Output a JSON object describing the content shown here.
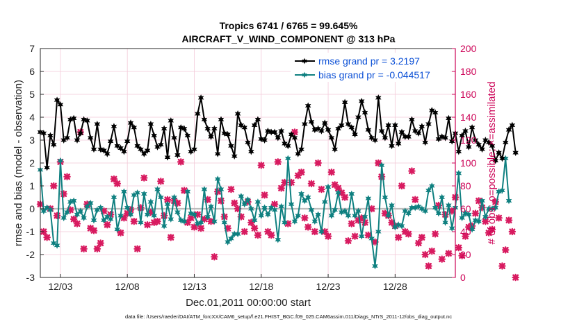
{
  "title_line1": "Tropics 6741 / 6765 = 99.645%",
  "title_line2": "AIRCRAFT_V_WIND_COMPONENT @ 313 hPa",
  "xlabel": "Dec.01,2011 00:00:00 start",
  "ylabel_left": "rmse and bias (model - observation)",
  "ylabel_right": "# of obs: o=possible; ×=assimilated",
  "footer": "data file: /Users/raeder/DAI/ATM_forcXX/CAM6_setup/f.e21.FHIST_BGC.f09_025.CAM6assim.011/Diags_NTrS_2011-12/obs_diag_output.nc",
  "colors": {
    "rmse": "#000000",
    "bias": "#0f8080",
    "obs": "#d81b60",
    "right_axis": "#cc0055",
    "legend_text": "#0a4fd6"
  },
  "chart_data": {
    "type": "line",
    "xlim": [
      1.5,
      32.5
    ],
    "xticks": [
      3,
      8,
      13,
      18,
      23,
      28
    ],
    "xtick_labels": [
      "12/03",
      "12/08",
      "12/13",
      "12/18",
      "12/23",
      "12/28"
    ],
    "ylim_left": [
      -3,
      7
    ],
    "yticks_left": [
      -3,
      -2,
      -1,
      0,
      1,
      2,
      3,
      4,
      5,
      6,
      7
    ],
    "ylim_right": [
      0,
      200
    ],
    "yticks_right": [
      0,
      20,
      40,
      60,
      80,
      100,
      120,
      140,
      160,
      180,
      200
    ],
    "legend": [
      "rmse grand pr = 3.2197",
      "bias grand pr = -0.044517"
    ],
    "series": [
      {
        "name": "rmse",
        "marker": "star",
        "axis": "left",
        "values": [
          3.35,
          3.3,
          1.8,
          3.2,
          2.8,
          4.75,
          4.55,
          3.0,
          3.1,
          3.9,
          3.95,
          3.0,
          3.3,
          3.9,
          3.85,
          3.1,
          2.6,
          3.7,
          2.6,
          2.55,
          2.4,
          2.95,
          3.6,
          2.75,
          2.65,
          2.5,
          2.95,
          3.75,
          3.55,
          2.75,
          2.6,
          2.4,
          2.55,
          3.7,
          3.2,
          2.7,
          2.8,
          3.5,
          2.25,
          3.85,
          3.1,
          2.35,
          3.55,
          3.5,
          3.2,
          2.5,
          2.6,
          4.15,
          4.85,
          3.9,
          3.5,
          3.15,
          3.5,
          2.4,
          3.9,
          3.3,
          3.25,
          2.75,
          2.3,
          4.15,
          3.65,
          3.55,
          2.9,
          2.5,
          3.65,
          3.9,
          3.05,
          3.0,
          3.4,
          3.35,
          3.35,
          3.1,
          3.4,
          2.85,
          2.75,
          3.25,
          3.1,
          2.4,
          2.6,
          3.7,
          4.5,
          3.8,
          3.45,
          3.5,
          3.4,
          3.75,
          3.45,
          3.1,
          2.6,
          3.5,
          3.65,
          4.65,
          3.7,
          3.55,
          3.25,
          4.0,
          4.7,
          4.2,
          3.45,
          3.1,
          3.0,
          4.85,
          3.4,
          3.1,
          3.65,
          2.75,
          3.65,
          2.85,
          3.35,
          3.15,
          3.15,
          3.9,
          3.4,
          3.3,
          3.6,
          2.9,
          3.7,
          4.3,
          4.2,
          3.05,
          3.15,
          3.1,
          3.95,
          2.95,
          3.3,
          2.5,
          3.2,
          3.4,
          2.7,
          3.55,
          3.0,
          2.8,
          2.6,
          3.0,
          2.9,
          2.75,
          2.1,
          2.45,
          2.2,
          2.9,
          3.45,
          3.65,
          2.45
        ]
      },
      {
        "name": "bias",
        "marker": "star",
        "axis": "left",
        "values": [
          1.7,
          -0.1,
          0.05,
          -0.05,
          -1.5,
          -1.6,
          2.1,
          -0.4,
          -0.15,
          0.3,
          0.35,
          -0.25,
          -0.1,
          -0.4,
          0.1,
          0.25,
          -0.5,
          -0.05,
          0.05,
          -0.5,
          -0.35,
          -0.45,
          0.5,
          -0.9,
          -0.3,
          0.75,
          0.05,
          -0.25,
          0.6,
          0.7,
          -0.6,
          0.65,
          -0.25,
          0.3,
          -0.3,
          0.85,
          0.5,
          -0.75,
          0.2,
          -0.45,
          0.5,
          -0.15,
          -0.5,
          -0.55,
          0.75,
          -0.2,
          -0.25,
          -0.65,
          -0.6,
          0.85,
          -0.35,
          0.1,
          -0.55,
          1.3,
          0.85,
          -0.6,
          -1.45,
          -1.3,
          -1.1,
          -1.1,
          0.55,
          0.2,
          0.4,
          0.0,
          -0.5,
          0.3,
          -0.3,
          0.05,
          -0.25,
          0.05,
          -0.05,
          -1.35,
          0.1,
          -0.6,
          2.2,
          0.2,
          -0.55,
          -0.3,
          0.65,
          0.35,
          0.5,
          -0.05,
          -0.55,
          -0.25,
          -1.0,
          0.3,
          0.95,
          -0.3,
          -0.05,
          0.7,
          -0.15,
          -0.1,
          -0.3,
          0.65,
          -0.3,
          -0.1,
          -1.2,
          -0.35,
          0.45,
          -1.3,
          -2.5,
          -1.0,
          1.9,
          0.5,
          -0.3,
          0.15,
          -0.8,
          -0.7,
          -0.75,
          -0.1,
          -0.2,
          0.05,
          0.05,
          0.1,
          0.0,
          -0.1,
          0.8,
          1.0,
          0.05,
          -0.2,
          0.5,
          -0.6,
          0.15,
          -0.85,
          0.05,
          1.55,
          -0.4,
          -0.2,
          -0.25,
          -0.9,
          -0.5,
          -0.55,
          0.35,
          -0.35,
          0.0,
          0.0,
          0.05,
          0.75,
          0.8,
          2.2,
          0.35
        ]
      },
      {
        "name": "obs",
        "marker": "x",
        "axis": "right",
        "values": [
          64,
          40,
          35,
          60,
          80,
          54,
          101,
          73,
          88,
          59,
          51,
          47,
          127,
          25,
          64,
          43,
          41,
          25,
          30,
          58,
          46,
          55,
          86,
          82,
          39,
          52,
          56,
          59,
          49,
          25,
          61,
          87,
          46,
          57,
          48,
          49,
          84,
          54,
          68,
          35,
          67,
          65,
          101,
          76,
          48,
          52,
          44,
          55,
          43,
          51,
          68,
          49,
          18,
          75,
          67,
          53,
          43,
          77,
          65,
          60,
          53,
          40,
          66,
          48,
          43,
          37,
          98,
          72,
          40,
          37,
          64,
          101,
          78,
          83,
          47,
          83,
          127,
          89,
          92,
          52,
          44,
          82,
          40,
          100,
          77,
          40,
          36,
          92,
          81,
          78,
          74,
          70,
          32,
          47,
          36,
          50,
          52,
          48,
          37,
          60,
          31,
          100,
          88,
          56,
          54,
          48,
          45,
          35,
          80,
          40,
          38,
          93,
          68,
          30,
          35,
          20,
          10,
          23,
          38,
          63,
          16,
          55,
          21,
          58,
          70,
          26,
          19,
          36,
          44,
          45,
          56,
          67,
          61,
          49,
          39,
          42,
          66,
          52,
          10,
          24,
          50,
          40,
          0
        ]
      }
    ]
  }
}
